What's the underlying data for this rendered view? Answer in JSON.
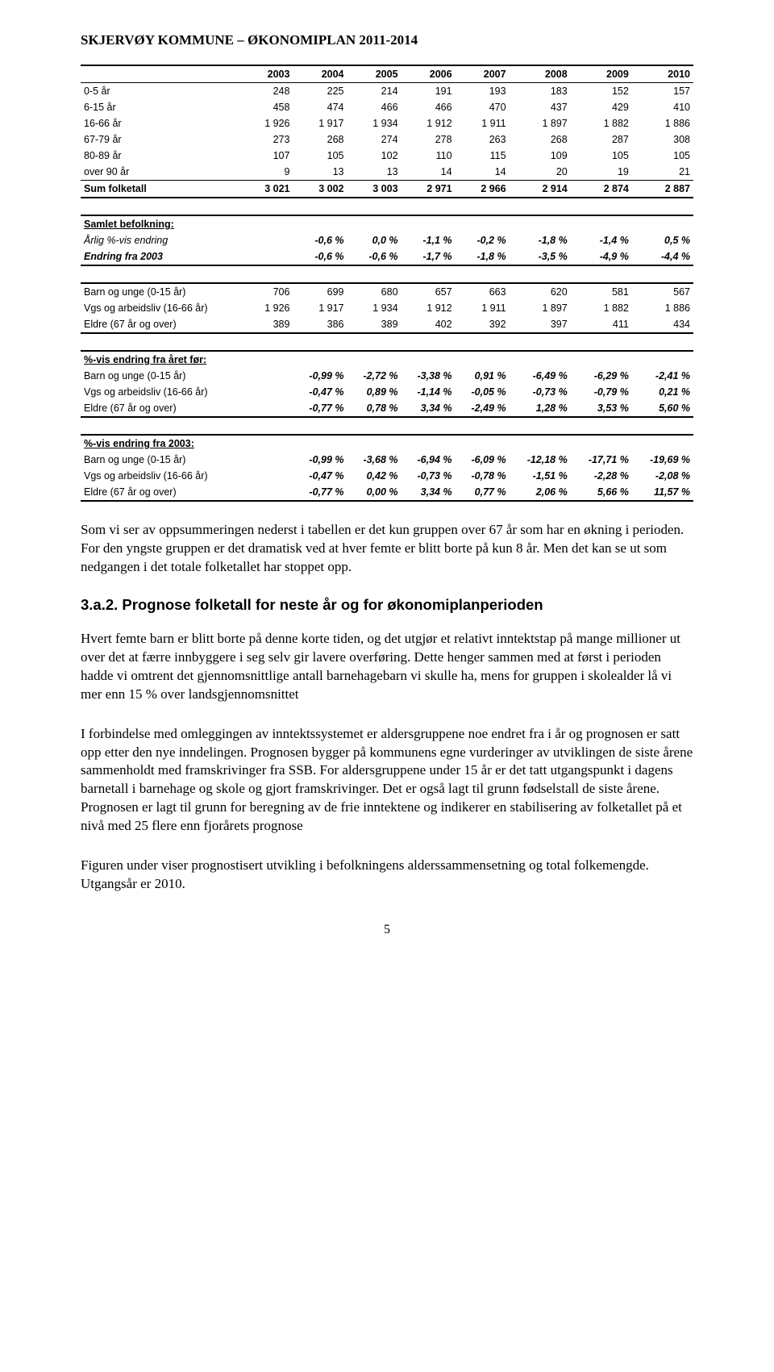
{
  "header": "SKJERVØY KOMMUNE – ØKONOMIPLAN  2011-2014",
  "table": {
    "years": [
      "2003",
      "2004",
      "2005",
      "2006",
      "2007",
      "2008",
      "2009",
      "2010"
    ],
    "age_rows": [
      {
        "label": "0-5 år",
        "vals": [
          "248",
          "225",
          "214",
          "191",
          "193",
          "183",
          "152",
          "157"
        ]
      },
      {
        "label": "6-15 år",
        "vals": [
          "458",
          "474",
          "466",
          "466",
          "470",
          "437",
          "429",
          "410"
        ]
      },
      {
        "label": "16-66 år",
        "vals": [
          "1 926",
          "1 917",
          "1 934",
          "1 912",
          "1 911",
          "1 897",
          "1 882",
          "1 886"
        ]
      },
      {
        "label": "67-79 år",
        "vals": [
          "273",
          "268",
          "274",
          "278",
          "263",
          "268",
          "287",
          "308"
        ]
      },
      {
        "label": "80-89 år",
        "vals": [
          "107",
          "105",
          "102",
          "110",
          "115",
          "109",
          "105",
          "105"
        ]
      },
      {
        "label": "over 90 år",
        "vals": [
          "9",
          "13",
          "13",
          "14",
          "14",
          "20",
          "19",
          "21"
        ]
      }
    ],
    "sum_label": "Sum folketall",
    "sum_vals": [
      "3 021",
      "3 002",
      "3 003",
      "2 971",
      "2 966",
      "2 914",
      "2 874",
      "2 887"
    ],
    "samlet_header": "Samlet befolkning:",
    "aarlig_label": "Årlig %-vis endring",
    "aarlig_vals": [
      "-0,6 %",
      "0,0 %",
      "-1,1 %",
      "-0,2 %",
      "-1,8 %",
      "-1,4 %",
      "0,5 %"
    ],
    "endring2003_label": "Endring fra 2003",
    "endring2003_vals": [
      "-0,6 %",
      "-0,6 %",
      "-1,7 %",
      "-1,8 %",
      "-3,5 %",
      "-4,9 %",
      "-4,4 %"
    ],
    "group_rows": [
      {
        "label": "Barn og unge (0-15 år)",
        "vals": [
          "706",
          "699",
          "680",
          "657",
          "663",
          "620",
          "581",
          "567"
        ]
      },
      {
        "label": "Vgs og arbeidsliv (16-66 år)",
        "vals": [
          "1 926",
          "1 917",
          "1 934",
          "1 912",
          "1 911",
          "1 897",
          "1 882",
          "1 886"
        ]
      },
      {
        "label": "Eldre (67 år og over)",
        "vals": [
          "389",
          "386",
          "389",
          "402",
          "392",
          "397",
          "411",
          "434"
        ]
      }
    ],
    "pct_prev_header": "%-vis endring fra året før:",
    "pct_prev_rows": [
      {
        "label": "Barn og unge (0-15 år)",
        "vals": [
          "-0,99 %",
          "-2,72 %",
          "-3,38 %",
          "0,91 %",
          "-6,49 %",
          "-6,29 %",
          "-2,41 %"
        ]
      },
      {
        "label": "Vgs og arbeidsliv (16-66 år)",
        "vals": [
          "-0,47 %",
          "0,89 %",
          "-1,14 %",
          "-0,05 %",
          "-0,73 %",
          "-0,79 %",
          "0,21 %"
        ]
      },
      {
        "label": "Eldre (67 år og over)",
        "vals": [
          "-0,77 %",
          "0,78 %",
          "3,34 %",
          "-2,49 %",
          "1,28 %",
          "3,53 %",
          "5,60 %"
        ]
      }
    ],
    "pct2003_header": "%-vis endring fra 2003:",
    "pct2003_rows": [
      {
        "label": "Barn og unge (0-15 år)",
        "vals": [
          "-0,99 %",
          "-3,68 %",
          "-6,94 %",
          "-6,09 %",
          "-12,18 %",
          "-17,71 %",
          "-19,69 %"
        ]
      },
      {
        "label": "Vgs og arbeidsliv (16-66 år)",
        "vals": [
          "-0,47 %",
          "0,42 %",
          "-0,73 %",
          "-0,78 %",
          "-1,51 %",
          "-2,28 %",
          "-2,08 %"
        ]
      },
      {
        "label": "Eldre (67 år og over)",
        "vals": [
          "-0,77 %",
          "0,00 %",
          "3,34 %",
          "0,77 %",
          "2,06 %",
          "5,66 %",
          "11,57 %"
        ]
      }
    ]
  },
  "para1": "Som vi ser av oppsummeringen nederst i tabellen er det kun gruppen over 67 år som har en økning i perioden. For den yngste gruppen er det dramatisk ved at hver femte er blitt borte på kun 8 år. Men det kan se ut som nedgangen i det totale folketallet har stoppet opp.",
  "subheading": "3.a.2. Prognose folketall for neste år og for økonomiplanperioden",
  "para2": "Hvert femte barn er blitt borte på denne korte tiden, og det utgjør et relativt inntektstap på mange millioner ut over det at færre innbyggere i seg selv gir lavere overføring. Dette henger sammen med at først i perioden hadde vi omtrent det gjennomsnittlige antall barnehagebarn vi skulle ha, mens for gruppen i skolealder lå vi mer enn 15 % over landsgjennomsnittet",
  "para3": "I forbindelse med omleggingen av inntektssystemet er aldersgruppene noe endret fra i år og prognosen er satt opp etter den nye inndelingen. Prognosen bygger på kommunens egne vurderinger av utviklingen de siste årene sammenholdt med framskrivinger fra SSB. For aldersgruppene under 15 år er det tatt utgangspunkt i dagens barnetall i barnehage og skole og gjort framskrivinger. Det er også lagt til grunn fødselstall de siste årene. Prognosen er lagt til grunn for beregning av de frie inntektene og indikerer en stabilisering av folketallet på et nivå med 25 flere enn fjorårets prognose",
  "para4": "Figuren under viser prognostisert utvikling i befolkningens alderssammensetning og total folkemengde. Utgangsår er 2010.",
  "page_number": "5"
}
